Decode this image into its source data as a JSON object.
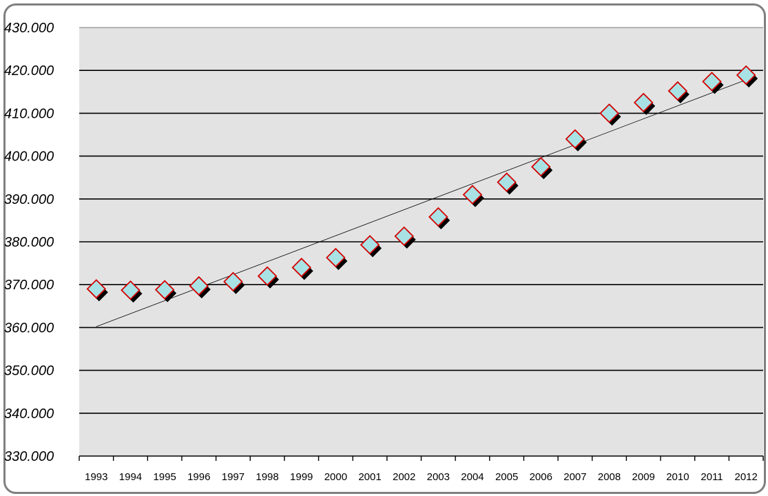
{
  "chart_data": {
    "type": "scatter",
    "title": "",
    "xlabel": "",
    "ylabel": "",
    "categories": [
      "1993",
      "1994",
      "1995",
      "1996",
      "1997",
      "1998",
      "1999",
      "2000",
      "2001",
      "2002",
      "2003",
      "2004",
      "2005",
      "2006",
      "2007",
      "2008",
      "2009",
      "2010",
      "2011",
      "2012"
    ],
    "series": [
      {
        "values": [
          369000,
          368700,
          368800,
          369700,
          370700,
          372000,
          374000,
          376300,
          379300,
          381300,
          385800,
          391000,
          393900,
          397500,
          404000,
          410000,
          412500,
          415200,
          417400,
          418900
        ]
      }
    ],
    "trendline": {
      "type": "linear",
      "start": 360200,
      "end": 417800
    },
    "ylim": [
      330000,
      430000
    ],
    "yticks": [
      330000,
      340000,
      350000,
      360000,
      370000,
      380000,
      390000,
      400000,
      410000,
      420000,
      430000
    ],
    "ytick_labels": [
      "330.000",
      "340.000",
      "350.000",
      "360.000",
      "370.000",
      "380.000",
      "390.000",
      "400.000",
      "410.000",
      "420.000",
      "430.000"
    ],
    "grid": true,
    "legend": "none",
    "colors": {
      "plot_background": "#e3e3e3",
      "marker_fill": "#a8e2e4",
      "marker_edge": "#d40000",
      "marker_shadow": "#000000",
      "gridline": "#000000",
      "trendline": "#000000",
      "frame": "#7f7f7f"
    }
  }
}
